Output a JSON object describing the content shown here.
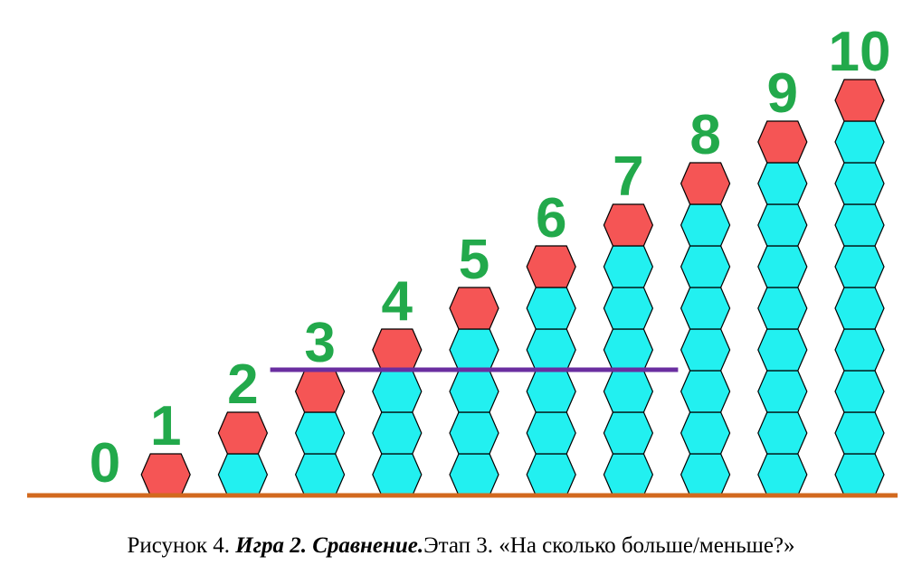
{
  "columns": [
    {
      "label": "0",
      "count": 0
    },
    {
      "label": "1",
      "count": 1
    },
    {
      "label": "2",
      "count": 2
    },
    {
      "label": "3",
      "count": 3
    },
    {
      "label": "4",
      "count": 4
    },
    {
      "label": "5",
      "count": 5
    },
    {
      "label": "6",
      "count": 6
    },
    {
      "label": "7",
      "count": 7
    },
    {
      "label": "8",
      "count": 8
    },
    {
      "label": "9",
      "count": 9
    },
    {
      "label": "10",
      "count": 10
    }
  ],
  "comparison_line": {
    "level": 3,
    "from_column": "3",
    "to_column": "7"
  },
  "colors": {
    "top_bead": "#f55555",
    "body_bead": "#22f0f0",
    "bead_outline": "#000000",
    "numbers": "#22a94b",
    "baseline": "#d2691e",
    "comparison_line": "#6a2ea0"
  },
  "caption": {
    "prefix": "Рисунок 4. ",
    "bold_italic": "Игра 2. Сравнение.",
    "suffix": "Этап 3. «На сколько больше/меньше?»"
  }
}
